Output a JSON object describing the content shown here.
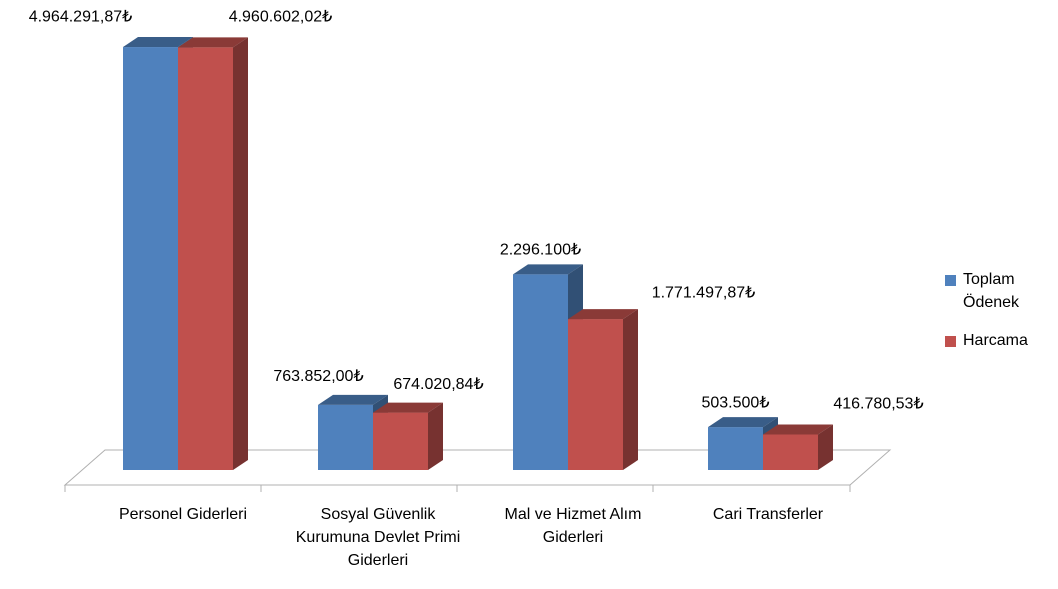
{
  "chart_data": {
    "type": "bar3d",
    "categories": [
      "Personel Giderleri",
      "Sosyal Güvenlik Kurumuna Devlet Primi Giderleri",
      "Mal ve Hizmet Alım Giderleri",
      "Cari Transferler"
    ],
    "series": [
      {
        "name": "Toplam Ödenek",
        "color": "#4f81bd",
        "values": [
          4964291.87,
          763852.0,
          2296100,
          503500
        ],
        "value_labels": [
          "4.964.291,87₺",
          "763.852,00₺",
          "2.296.100₺",
          "503.500₺"
        ]
      },
      {
        "name": "Harcama",
        "color": "#c0504d",
        "values": [
          4960602.02,
          674020.84,
          1771497.87,
          416780.53
        ],
        "value_labels": [
          "4.960.602,02₺",
          "674.020,84₺",
          "1.771.497,87₺",
          "416.780,53₺"
        ]
      }
    ],
    "ylim": [
      0,
      5000000
    ],
    "legend": "right"
  }
}
